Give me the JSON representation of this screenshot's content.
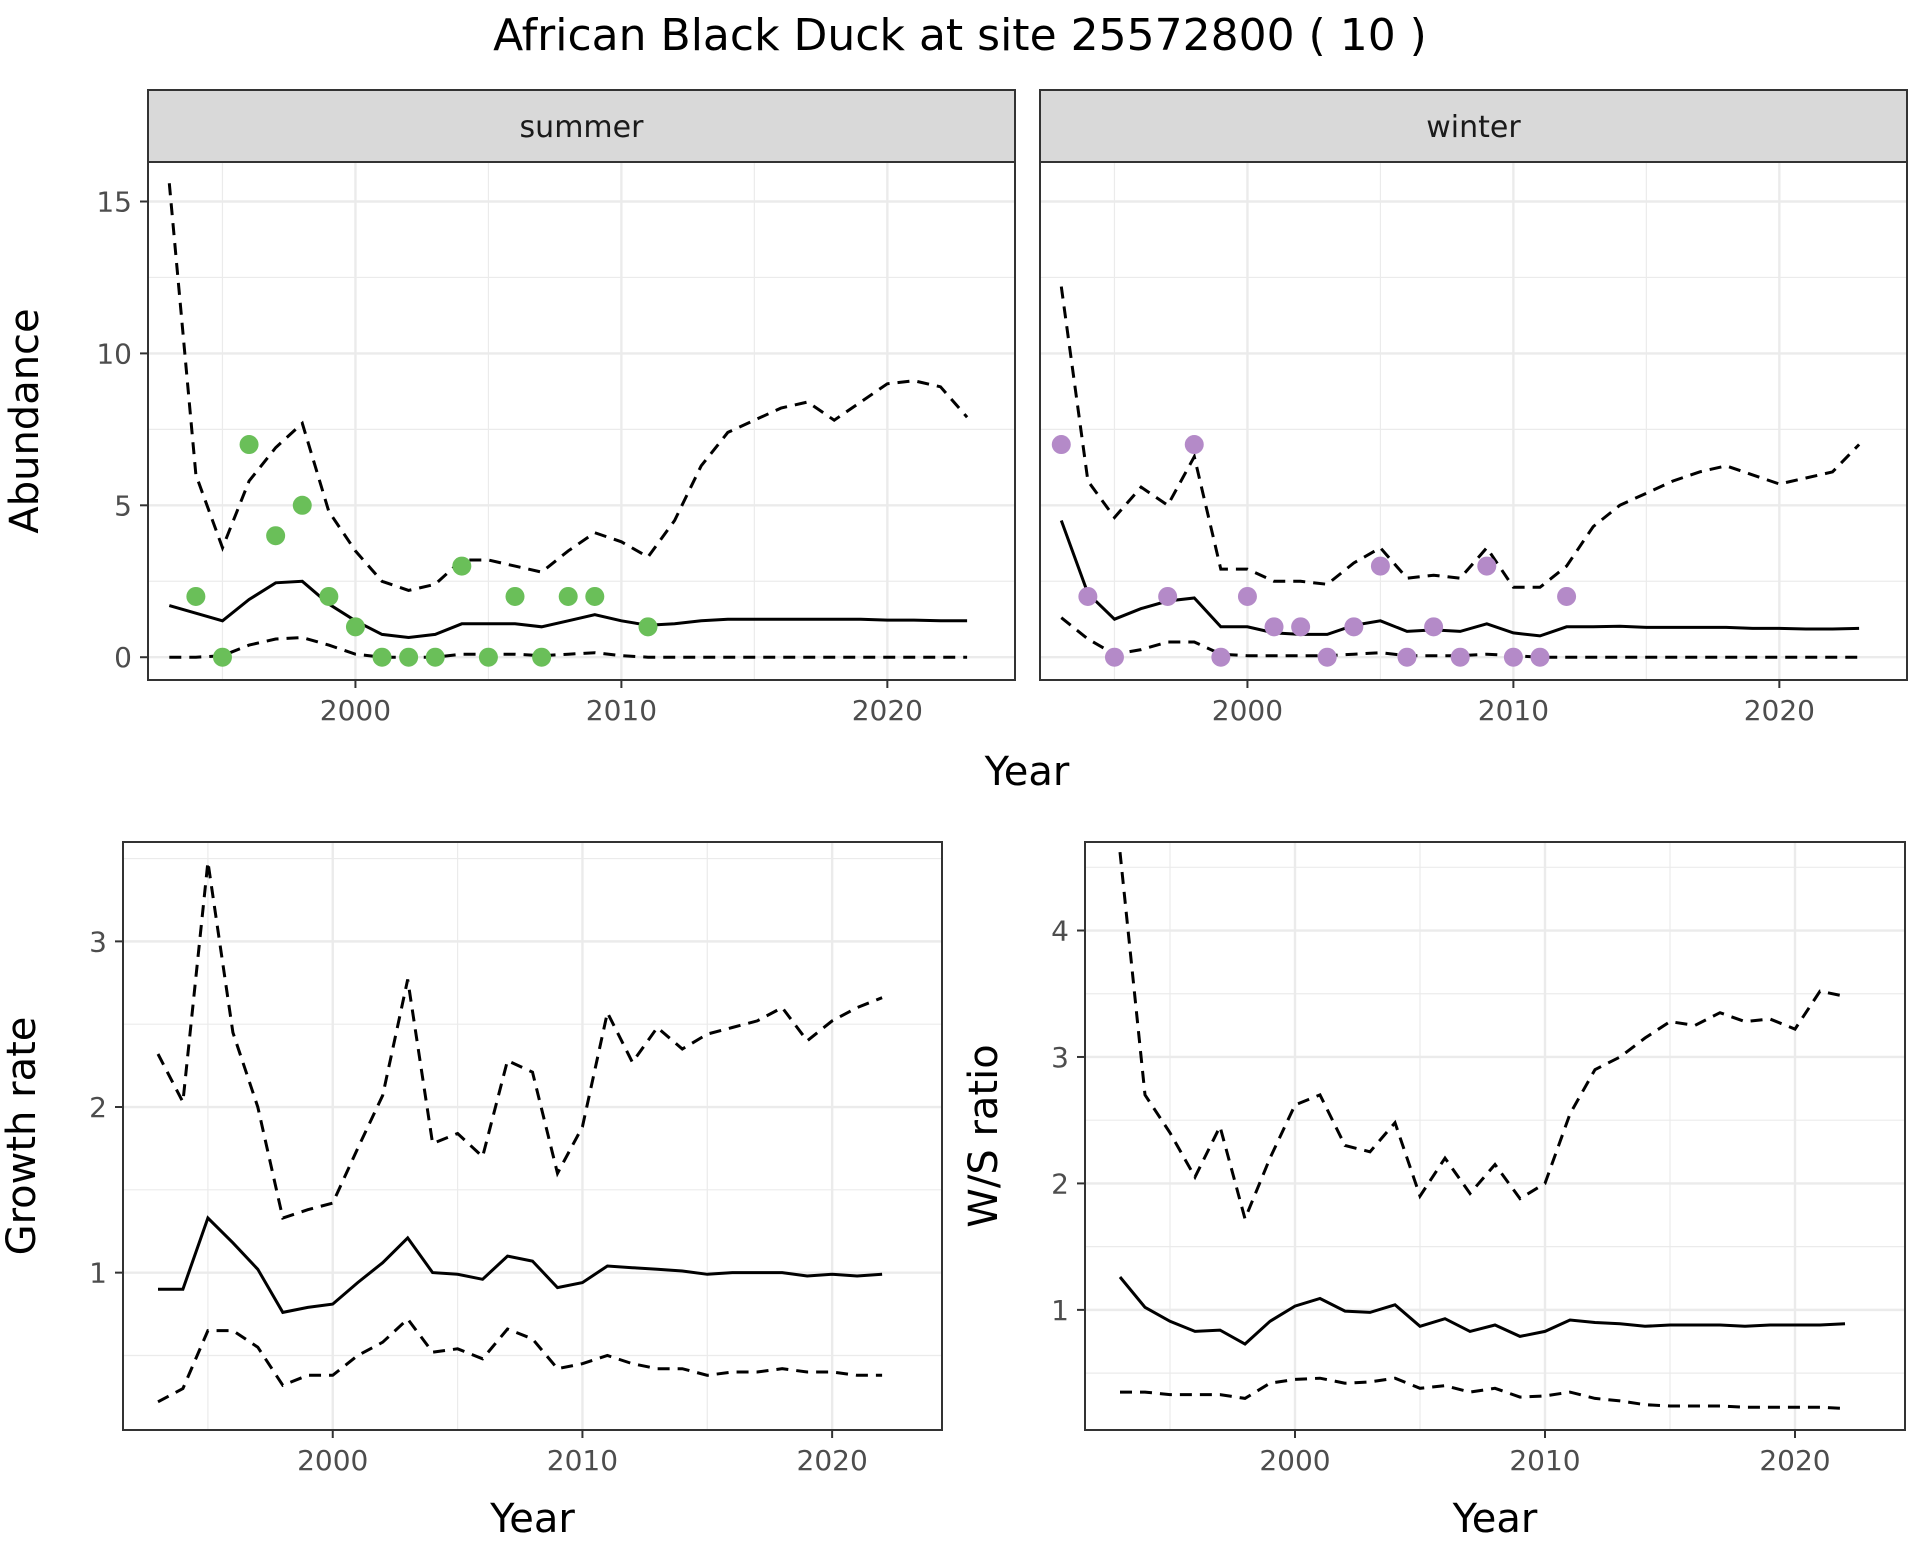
{
  "title": "African Black Duck at site 25572800 ( 10 )",
  "colors": {
    "summer_points": "#6abf59",
    "winter_points": "#b48ac8",
    "line": "#000000",
    "strip_fill": "#d9d9d9",
    "grid": "#ebebeb"
  },
  "chart_data": [
    {
      "type": "line",
      "panel": "summer",
      "strip": "summer",
      "xlabel": "Year",
      "ylabel": "Abundance",
      "xlim": [
        1992.2,
        2024.8
      ],
      "ylim": [
        -0.75,
        16.3
      ],
      "xticks": [
        2000,
        2010,
        2020
      ],
      "yticks": [
        0,
        5,
        10,
        15
      ],
      "grid": true,
      "series": [
        {
          "role": "estimate",
          "style": "solid",
          "x": [
            1993,
            1994,
            1995,
            1996,
            1997,
            1998,
            1999,
            2000,
            2001,
            2002,
            2003,
            2004,
            2005,
            2006,
            2007,
            2008,
            2009,
            2010,
            2011,
            2012,
            2013,
            2014,
            2015,
            2016,
            2017,
            2018,
            2019,
            2020,
            2021,
            2022,
            2023
          ],
          "y": [
            1.7,
            1.45,
            1.2,
            1.9,
            2.45,
            2.5,
            1.75,
            1.2,
            0.75,
            0.65,
            0.75,
            1.1,
            1.1,
            1.1,
            1.0,
            1.2,
            1.4,
            1.2,
            1.05,
            1.1,
            1.2,
            1.25,
            1.25,
            1.25,
            1.25,
            1.25,
            1.25,
            1.22,
            1.22,
            1.2,
            1.2
          ]
        },
        {
          "role": "upper",
          "style": "dashed",
          "x": [
            1993,
            1994,
            1995,
            1996,
            1997,
            1998,
            1999,
            2000,
            2001,
            2002,
            2003,
            2004,
            2005,
            2006,
            2007,
            2008,
            2009,
            2010,
            2011,
            2012,
            2013,
            2014,
            2015,
            2016,
            2017,
            2018,
            2019,
            2020,
            2021,
            2022,
            2023
          ],
          "y": [
            15.6,
            6.0,
            3.6,
            5.8,
            6.9,
            7.7,
            4.8,
            3.5,
            2.5,
            2.2,
            2.4,
            3.2,
            3.2,
            3.0,
            2.8,
            3.5,
            4.1,
            3.8,
            3.3,
            4.5,
            6.3,
            7.4,
            7.8,
            8.2,
            8.4,
            7.8,
            8.4,
            9.0,
            9.1,
            8.9,
            7.9
          ]
        },
        {
          "role": "lower",
          "style": "dashed",
          "x": [
            1993,
            1994,
            1995,
            1996,
            1997,
            1998,
            1999,
            2000,
            2001,
            2002,
            2003,
            2004,
            2005,
            2006,
            2007,
            2008,
            2009,
            2010,
            2011,
            2012,
            2013,
            2014,
            2015,
            2016,
            2017,
            2018,
            2019,
            2020,
            2021,
            2022,
            2023
          ],
          "y": [
            0,
            0,
            0.05,
            0.4,
            0.6,
            0.65,
            0.4,
            0.1,
            0.0,
            0.0,
            0.0,
            0.1,
            0.1,
            0.1,
            0.05,
            0.1,
            0.15,
            0.05,
            0,
            0,
            0,
            0,
            0,
            0,
            0,
            0,
            0,
            0,
            0,
            0,
            0
          ]
        }
      ],
      "points": {
        "x": [
          1994,
          1995,
          1996,
          1997,
          1998,
          1999,
          2000,
          2001,
          2002,
          2003,
          2004,
          2005,
          2006,
          2007,
          2008,
          2009,
          2011
        ],
        "y": [
          2,
          0,
          7,
          4,
          5,
          2,
          1,
          0,
          0,
          0,
          3,
          0,
          2,
          0,
          2,
          2,
          1
        ]
      }
    },
    {
      "type": "line",
      "panel": "winter",
      "strip": "winter",
      "xlabel": "Year",
      "ylabel": "",
      "xlim": [
        1992.2,
        2024.8
      ],
      "ylim": [
        -0.75,
        16.3
      ],
      "xticks": [
        2000,
        2010,
        2020
      ],
      "yticks": [
        0,
        5,
        10,
        15
      ],
      "grid": true,
      "series": [
        {
          "role": "estimate",
          "style": "solid",
          "x": [
            1993,
            1994,
            1995,
            1996,
            1997,
            1998,
            1999,
            2000,
            2001,
            2002,
            2003,
            2004,
            2005,
            2006,
            2007,
            2008,
            2009,
            2010,
            2011,
            2012,
            2013,
            2014,
            2015,
            2016,
            2017,
            2018,
            2019,
            2020,
            2021,
            2022,
            2023
          ],
          "y": [
            4.5,
            2.1,
            1.25,
            1.6,
            1.85,
            1.95,
            1.0,
            1.0,
            0.8,
            0.75,
            0.75,
            1.05,
            1.2,
            0.85,
            0.9,
            0.85,
            1.1,
            0.8,
            0.7,
            1.0,
            1.0,
            1.02,
            0.98,
            0.98,
            0.98,
            0.98,
            0.95,
            0.95,
            0.93,
            0.93,
            0.95
          ]
        },
        {
          "role": "upper",
          "style": "dashed",
          "x": [
            1993,
            1994,
            1995,
            1996,
            1997,
            1998,
            1999,
            2000,
            2001,
            2002,
            2003,
            2004,
            2005,
            2006,
            2007,
            2008,
            2009,
            2010,
            2011,
            2012,
            2013,
            2014,
            2015,
            2016,
            2017,
            2018,
            2019,
            2020,
            2021,
            2022,
            2023
          ],
          "y": [
            12.2,
            5.8,
            4.6,
            5.6,
            5.0,
            6.6,
            2.9,
            2.9,
            2.5,
            2.5,
            2.4,
            3.1,
            3.6,
            2.6,
            2.7,
            2.6,
            3.6,
            2.3,
            2.3,
            3.0,
            4.3,
            5.0,
            5.4,
            5.8,
            6.1,
            6.3,
            6.0,
            5.7,
            5.9,
            6.1,
            7.0
          ]
        },
        {
          "role": "lower",
          "style": "dashed",
          "x": [
            1993,
            1994,
            1995,
            1996,
            1997,
            1998,
            1999,
            2000,
            2001,
            2002,
            2003,
            2004,
            2005,
            2006,
            2007,
            2008,
            2009,
            2010,
            2011,
            2012,
            2013,
            2014,
            2015,
            2016,
            2017,
            2018,
            2019,
            2020,
            2021,
            2022,
            2023
          ],
          "y": [
            1.3,
            0.6,
            0.1,
            0.25,
            0.5,
            0.5,
            0.1,
            0.05,
            0.05,
            0.05,
            0.05,
            0.1,
            0.15,
            0.05,
            0.05,
            0.05,
            0.1,
            0.05,
            0,
            0,
            0,
            0,
            0,
            0,
            0,
            0,
            0,
            0,
            0,
            0,
            0
          ]
        }
      ],
      "points": {
        "x": [
          1993,
          1994,
          1995,
          1997,
          1998,
          1999,
          2000,
          2001,
          2002,
          2003,
          2004,
          2005,
          2006,
          2007,
          2008,
          2009,
          2010,
          2011,
          2012
        ],
        "y": [
          7,
          2,
          0,
          2,
          7,
          0,
          2,
          1,
          1,
          0,
          1,
          3,
          0,
          1,
          0,
          3,
          0,
          0,
          2
        ]
      }
    },
    {
      "type": "line",
      "panel": "growth",
      "xlabel": "Year",
      "ylabel": "Growth rate",
      "xlim": [
        1991.6,
        2024.4
      ],
      "ylim": [
        0.05,
        3.6
      ],
      "xticks": [
        2000,
        2010,
        2020
      ],
      "yticks": [
        1,
        2,
        3
      ],
      "grid": true,
      "series": [
        {
          "role": "estimate",
          "style": "solid",
          "x": [
            1993,
            1994,
            1995,
            1996,
            1997,
            1998,
            1999,
            2000,
            2001,
            2002,
            2003,
            2004,
            2005,
            2006,
            2007,
            2008,
            2009,
            2010,
            2011,
            2012,
            2013,
            2014,
            2015,
            2016,
            2017,
            2018,
            2019,
            2020,
            2021,
            2022
          ],
          "y": [
            0.9,
            0.9,
            1.33,
            1.18,
            1.02,
            0.76,
            0.79,
            0.81,
            0.94,
            1.06,
            1.21,
            1.0,
            0.99,
            0.96,
            1.1,
            1.07,
            0.91,
            0.94,
            1.04,
            1.03,
            1.02,
            1.01,
            0.99,
            1.0,
            1.0,
            1.0,
            0.98,
            0.99,
            0.98,
            0.99
          ]
        },
        {
          "role": "upper",
          "style": "dashed",
          "x": [
            1993,
            1994,
            1995,
            1996,
            1997,
            1998,
            1999,
            2000,
            2001,
            2002,
            2003,
            2004,
            2005,
            2006,
            2007,
            2008,
            2009,
            2010,
            2011,
            2012,
            2013,
            2014,
            2015,
            2016,
            2017,
            2018,
            2019,
            2020,
            2021,
            2022
          ],
          "y": [
            2.32,
            2.03,
            3.48,
            2.45,
            2.0,
            1.33,
            1.38,
            1.42,
            1.75,
            2.07,
            2.77,
            1.78,
            1.84,
            1.7,
            2.28,
            2.21,
            1.6,
            1.88,
            2.57,
            2.27,
            2.48,
            2.35,
            2.44,
            2.48,
            2.52,
            2.6,
            2.4,
            2.52,
            2.6,
            2.66
          ]
        },
        {
          "role": "lower",
          "style": "dashed",
          "x": [
            1993,
            1994,
            1995,
            1996,
            1997,
            1998,
            1999,
            2000,
            2001,
            2002,
            2003,
            2004,
            2005,
            2006,
            2007,
            2008,
            2009,
            2010,
            2011,
            2012,
            2013,
            2014,
            2015,
            2016,
            2017,
            2018,
            2019,
            2020,
            2021,
            2022
          ],
          "y": [
            0.22,
            0.3,
            0.65,
            0.65,
            0.55,
            0.32,
            0.38,
            0.38,
            0.5,
            0.58,
            0.72,
            0.52,
            0.54,
            0.48,
            0.66,
            0.6,
            0.42,
            0.45,
            0.5,
            0.45,
            0.42,
            0.42,
            0.38,
            0.4,
            0.4,
            0.42,
            0.4,
            0.4,
            0.38,
            0.38
          ]
        }
      ]
    },
    {
      "type": "line",
      "panel": "ratio",
      "xlabel": "Year",
      "ylabel": "W/S ratio",
      "xlim": [
        1991.6,
        2024.4
      ],
      "ylim": [
        0.05,
        4.7
      ],
      "xticks": [
        2000,
        2010,
        2020
      ],
      "yticks": [
        1,
        2,
        3,
        4
      ],
      "grid": true,
      "series": [
        {
          "role": "estimate",
          "style": "solid",
          "x": [
            1993,
            1994,
            1995,
            1996,
            1997,
            1998,
            1999,
            2000,
            2001,
            2002,
            2003,
            2004,
            2005,
            2006,
            2007,
            2008,
            2009,
            2010,
            2011,
            2012,
            2013,
            2014,
            2015,
            2016,
            2017,
            2018,
            2019,
            2020,
            2021,
            2022
          ],
          "y": [
            1.26,
            1.02,
            0.91,
            0.83,
            0.84,
            0.73,
            0.91,
            1.03,
            1.09,
            0.99,
            0.98,
            1.04,
            0.87,
            0.93,
            0.83,
            0.88,
            0.79,
            0.83,
            0.92,
            0.9,
            0.89,
            0.87,
            0.88,
            0.88,
            0.88,
            0.87,
            0.88,
            0.88,
            0.88,
            0.89
          ]
        },
        {
          "role": "upper",
          "style": "dashed",
          "x": [
            1993,
            1994,
            1995,
            1996,
            1997,
            1998,
            1999,
            2000,
            2001,
            2002,
            2003,
            2004,
            2005,
            2006,
            2007,
            2008,
            2009,
            2010,
            2011,
            2012,
            2013,
            2014,
            2015,
            2016,
            2017,
            2018,
            2019,
            2020,
            2021,
            2022
          ],
          "y": [
            4.62,
            2.7,
            2.4,
            2.05,
            2.45,
            1.72,
            2.2,
            2.62,
            2.7,
            2.3,
            2.25,
            2.48,
            1.9,
            2.2,
            1.92,
            2.15,
            1.88,
            2.0,
            2.55,
            2.9,
            3.0,
            3.15,
            3.28,
            3.25,
            3.35,
            3.28,
            3.3,
            3.22,
            3.52,
            3.48
          ]
        },
        {
          "role": "lower",
          "style": "dashed",
          "x": [
            1993,
            1994,
            1995,
            1996,
            1997,
            1998,
            1999,
            2000,
            2001,
            2002,
            2003,
            2004,
            2005,
            2006,
            2007,
            2008,
            2009,
            2010,
            2011,
            2012,
            2013,
            2014,
            2015,
            2016,
            2017,
            2018,
            2019,
            2020,
            2021,
            2022
          ],
          "y": [
            0.35,
            0.35,
            0.33,
            0.33,
            0.33,
            0.3,
            0.42,
            0.45,
            0.46,
            0.42,
            0.43,
            0.46,
            0.38,
            0.4,
            0.35,
            0.38,
            0.31,
            0.32,
            0.35,
            0.3,
            0.28,
            0.25,
            0.24,
            0.24,
            0.24,
            0.23,
            0.23,
            0.23,
            0.23,
            0.22
          ]
        }
      ]
    }
  ]
}
